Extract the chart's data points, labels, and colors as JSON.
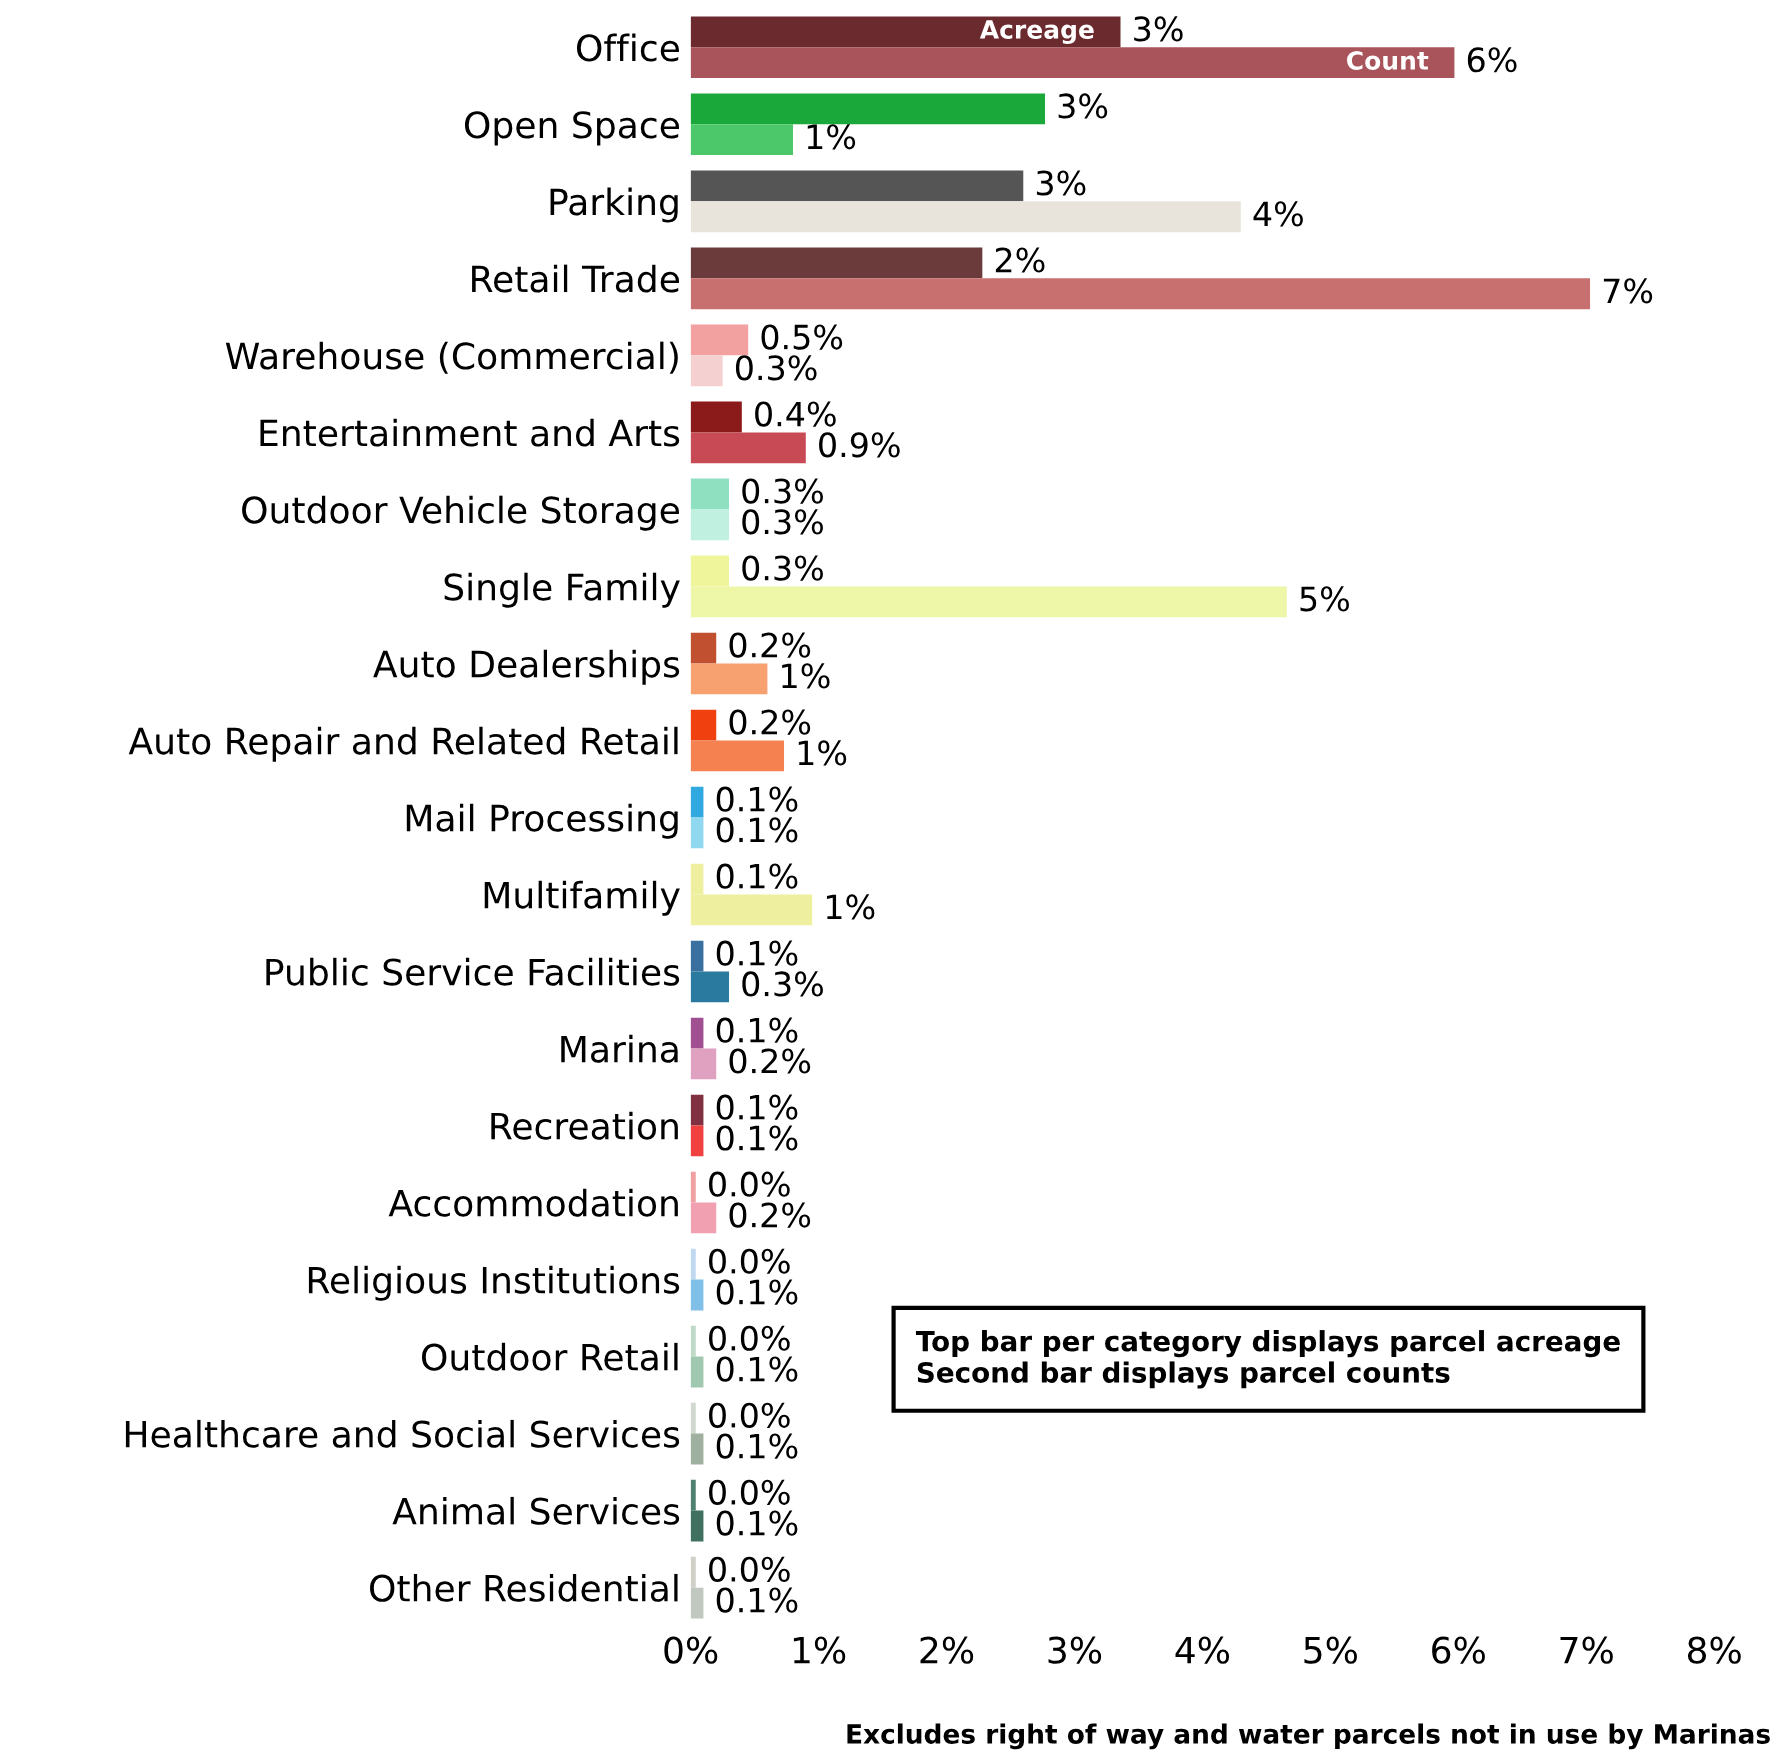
{
  "chart_data": {
    "type": "bar",
    "orientation": "horizontal",
    "categories": [
      "Office",
      "Open Space",
      "Parking",
      "Retail Trade",
      "Warehouse (Commercial)",
      "Entertainment and Arts",
      "Outdoor Vehicle Storage",
      "Single Family",
      "Auto Dealerships",
      "Auto Repair and Related Retail",
      "Mail Processing",
      "Multifamily",
      "Public Service Facilities",
      "Marina",
      "Recreation",
      "Accommodation",
      "Religious Institutions",
      "Outdoor Retail",
      "Healthcare and Social Services",
      "Animal Services",
      "Other Residential"
    ],
    "series": [
      {
        "name": "Acreage",
        "colors": [
          "#6b2a2e",
          "#1aa83a",
          "#555555",
          "#6b3a3a",
          "#f2a0a0",
          "#8b1a1a",
          "#8ee0c0",
          "#eef59a",
          "#c05030",
          "#f04010",
          "#30a8e0",
          "#eef0a0",
          "#3a70a0",
          "#a05090",
          "#803040",
          "#f0a0a0",
          "#c0d8f0",
          "#c0d8c8",
          "#d0d8d0",
          "#508070",
          "#d0d0c8"
        ],
        "values": [
          3.36,
          2.77,
          2.6,
          2.28,
          0.45,
          0.4,
          0.3,
          0.3,
          0.2,
          0.2,
          0.1,
          0.1,
          0.1,
          0.1,
          0.1,
          0.04,
          0.04,
          0.04,
          0.04,
          0.04,
          0.04
        ],
        "value_labels": [
          "3%",
          "3%",
          "3%",
          "2%",
          "0.5%",
          "0.4%",
          "0.3%",
          "0.3%",
          "0.2%",
          "0.2%",
          "0.1%",
          "0.1%",
          "0.1%",
          "0.1%",
          "0.1%",
          "0.0%",
          "0.0%",
          "0.0%",
          "0.0%",
          "0.0%",
          "0.0%"
        ]
      },
      {
        "name": "Count",
        "colors": [
          "#a8545a",
          "#4cc86a",
          "#e8e4dc",
          "#c87070",
          "#f5d0d0",
          "#c84a55",
          "#c0f0e0",
          "#eef7a8",
          "#f7a070",
          "#f58050",
          "#90d8f0",
          "#eef0a0",
          "#2a7aa0",
          "#e0a0c0",
          "#f04040",
          "#f0a0b0",
          "#80c0e8",
          "#a0c8b0",
          "#a0b0a0",
          "#407060",
          "#c0c8c0"
        ],
        "values": [
          5.97,
          0.8,
          4.3,
          7.03,
          0.25,
          0.9,
          0.3,
          4.66,
          0.6,
          0.73,
          0.1,
          0.95,
          0.3,
          0.2,
          0.1,
          0.2,
          0.1,
          0.1,
          0.1,
          0.1,
          0.1
        ],
        "value_labels": [
          "6%",
          "1%",
          "4%",
          "7%",
          "0.3%",
          "0.9%",
          "0.3%",
          "5%",
          "1%",
          "1%",
          "0.1%",
          "1%",
          "0.3%",
          "0.2%",
          "0.1%",
          "0.2%",
          "0.1%",
          "0.1%",
          "0.1%",
          "0.1%",
          "0.1%"
        ]
      }
    ],
    "xlim": [
      0,
      8
    ],
    "xticks": [
      {
        "value": 0,
        "label": "0%"
      },
      {
        "value": 1,
        "label": "1%"
      },
      {
        "value": 2,
        "label": "2%"
      },
      {
        "value": 3,
        "label": "3%"
      },
      {
        "value": 4,
        "label": "4%"
      },
      {
        "value": 5,
        "label": "5%"
      },
      {
        "value": 6,
        "label": "6%"
      },
      {
        "value": 7,
        "label": "7%"
      },
      {
        "value": 8,
        "label": "8%"
      }
    ],
    "annotations": [
      "Top bar per category displays parcel acreage\nSecond bar displays parcel counts",
      "Excludes right of way and water parcels not in use by Marinas"
    ],
    "legend": false,
    "grid": false
  }
}
